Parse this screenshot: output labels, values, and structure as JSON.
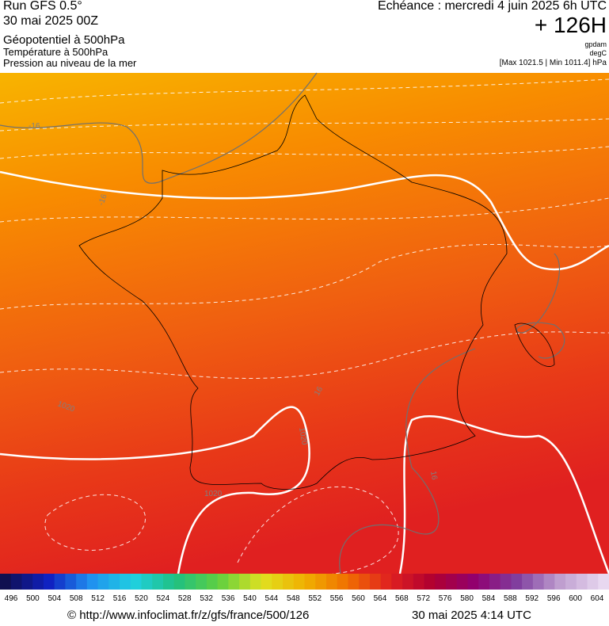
{
  "header": {
    "left": [
      "Run GFS 0.5°",
      "30 mai 2025 00Z",
      "Géopotentiel à 500hPa",
      "Température à 500hPa",
      "Pression au niveau de la mer"
    ],
    "right": {
      "echeance": "Echéance : mercredi 4 juin 2025 6h UTC",
      "lead": "+ 126H",
      "units": [
        "gpdam",
        "degC",
        "[Max 1021.5 | Min 1011.4] hPa"
      ]
    }
  },
  "map": {
    "contour_labels": [
      "-16",
      "-16",
      "1020",
      "1020",
      "1020",
      "16",
      "16"
    ]
  },
  "colorbar": {
    "labels": [
      496,
      500,
      504,
      508,
      512,
      516,
      520,
      524,
      528,
      532,
      536,
      540,
      544,
      548,
      552,
      556,
      560,
      564,
      568,
      572,
      576,
      580,
      584,
      588,
      592,
      596,
      600,
      604
    ]
  },
  "footer": {
    "url": "© http://www.infoclimat.fr/z/gfs/france/500/126",
    "date": "30 mai 2025  4:14 UTC"
  }
}
